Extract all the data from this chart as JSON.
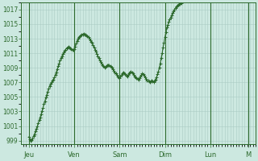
{
  "bg_color": "#cce8e0",
  "line_color": "#2d6a2d",
  "marker": "+",
  "marker_size": 2.5,
  "linewidth": 0.8,
  "grid_color": "#aaccc4",
  "label_color": "#2d6a2d",
  "spine_color": "#2d6a2d",
  "day_labels": [
    "Jeu",
    "Ven",
    "Sam",
    "Dim",
    "Lun",
    "M"
  ],
  "day_positions": [
    0,
    48,
    96,
    144,
    192,
    232
  ],
  "ylim": [
    998.5,
    1018.0
  ],
  "xlim": [
    -8,
    240
  ],
  "yticks": [
    999,
    1001,
    1003,
    1005,
    1007,
    1009,
    1011,
    1013,
    1015,
    1017
  ],
  "pressure": [
    999.5,
    999.2,
    999.0,
    999.1,
    999.3,
    999.6,
    999.9,
    1000.3,
    1000.6,
    1001.0,
    1001.4,
    1001.8,
    1002.2,
    1002.6,
    1003.1,
    1003.5,
    1004.0,
    1004.4,
    1004.9,
    1005.3,
    1005.7,
    1006.1,
    1006.5,
    1006.8,
    1007.0,
    1007.2,
    1007.4,
    1007.7,
    1008.0,
    1008.4,
    1008.8,
    1009.2,
    1009.6,
    1010.0,
    1010.3,
    1010.6,
    1010.9,
    1011.1,
    1011.3,
    1011.5,
    1011.7,
    1011.8,
    1011.9,
    1011.8,
    1011.7,
    1011.6,
    1011.5,
    1011.4,
    1011.6,
    1011.9,
    1012.3,
    1012.7,
    1013.0,
    1013.2,
    1013.3,
    1013.4,
    1013.5,
    1013.6,
    1013.7,
    1013.6,
    1013.5,
    1013.4,
    1013.3,
    1013.2,
    1013.0,
    1012.8,
    1012.6,
    1012.4,
    1012.1,
    1011.8,
    1011.5,
    1011.2,
    1010.9,
    1010.6,
    1010.3,
    1010.0,
    1009.8,
    1009.6,
    1009.4,
    1009.2,
    1009.0,
    1009.1,
    1009.2,
    1009.3,
    1009.4,
    1009.3,
    1009.2,
    1009.1,
    1009.0,
    1008.8,
    1008.6,
    1008.4,
    1008.2,
    1008.0,
    1007.8,
    1007.7,
    1007.6,
    1007.8,
    1008.0,
    1008.2,
    1008.4,
    1008.3,
    1008.1,
    1007.9,
    1007.8,
    1008.0,
    1008.2,
    1008.4,
    1008.5,
    1008.4,
    1008.2,
    1008.0,
    1007.8,
    1007.7,
    1007.6,
    1007.5,
    1007.4,
    1007.6,
    1007.8,
    1008.0,
    1008.2,
    1008.1,
    1007.9,
    1007.7,
    1007.5,
    1007.3,
    1007.2,
    1007.1,
    1007.0,
    1007.1,
    1007.2,
    1007.1,
    1007.0,
    1007.2,
    1007.4,
    1007.7,
    1008.1,
    1008.5,
    1009.0,
    1009.6,
    1010.3,
    1011.0,
    1011.8,
    1012.5,
    1013.2,
    1013.9,
    1014.5,
    1014.9,
    1015.3,
    1015.6,
    1015.9,
    1016.2,
    1016.5,
    1016.8,
    1017.0,
    1017.2,
    1017.4,
    1017.5,
    1017.6,
    1017.7,
    1017.8,
    1017.9
  ]
}
